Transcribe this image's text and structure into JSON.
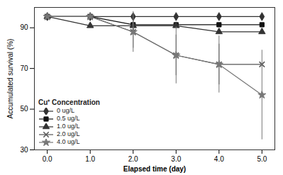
{
  "chart_data": {
    "type": "line",
    "x": [
      0,
      1,
      2,
      3,
      4,
      5
    ],
    "series": [
      {
        "name": "0 ug/L",
        "color": "#333333",
        "marker": "diamond",
        "line_style": "solid",
        "values": [
          95.5,
          95.5,
          95.5,
          95.5,
          95.5,
          95.5
        ],
        "errors": [
          0,
          0,
          0,
          0,
          0,
          0
        ]
      },
      {
        "name": "0.5 ug/L",
        "color": "#111111",
        "marker": "square",
        "line_style": "solid",
        "values": [
          95.5,
          95.5,
          91.5,
          91.5,
          91.5,
          91.5
        ],
        "errors": [
          0,
          0,
          0,
          0,
          0,
          0
        ]
      },
      {
        "name": "1.0 ug/L",
        "color": "#333333",
        "marker": "triangle",
        "line_style": "solid",
        "values": [
          95.5,
          91.0,
          91.0,
          91.0,
          88.0,
          88.0
        ],
        "errors": [
          0,
          0,
          0,
          0,
          0,
          0
        ]
      },
      {
        "name": "2.0 ug/L",
        "color": "#555555",
        "marker": "times",
        "line_style": "solid",
        "values": [
          95.5,
          95.5,
          88.0,
          76.5,
          72.0,
          72.0
        ],
        "errors": [
          0,
          0,
          8,
          10,
          10,
          0
        ]
      },
      {
        "name": "4.0 ug/L",
        "color": "#777777",
        "marker": "star",
        "line_style": "solid",
        "values": [
          95.5,
          95.5,
          88.0,
          76.5,
          72.0,
          57.0
        ],
        "errors": [
          0,
          0,
          10,
          14,
          14,
          22
        ]
      }
    ],
    "xlabel": "Elapsed time (day)",
    "ylabel": "Accumulated survival (%)",
    "legend_title": "Cu⁺ Concentration",
    "legend": "lower left",
    "grid": false,
    "xlim": [
      -0.3,
      5.3
    ],
    "ylim": [
      30,
      100
    ],
    "xticks": [
      0,
      1,
      2,
      3,
      4,
      5
    ],
    "yticks": [
      30,
      50,
      70,
      90
    ]
  }
}
